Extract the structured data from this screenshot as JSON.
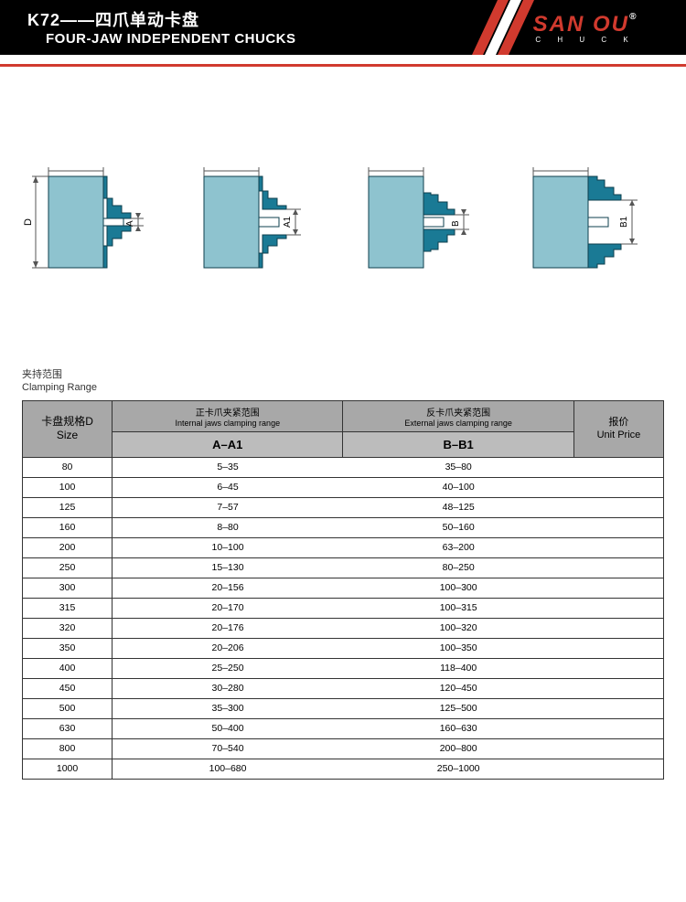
{
  "header": {
    "title_cn": "K72——四爪单动卡盘",
    "title_en": "FOUR-JAW INDEPENDENT CHUCKS",
    "brand": "SAN OU",
    "brand_sub": "C H U C K",
    "brand_color": "#d13a2e",
    "slash_colors": [
      "#d13a2e",
      "#ffffff",
      "#d13a2e"
    ]
  },
  "diagrams": {
    "body_fill": "#8ec3cf",
    "jaw_fill": "#1a7a95",
    "stroke": "#0d3f4d",
    "dim_stroke": "#555555",
    "labels": {
      "d": "D",
      "a": "A",
      "a1": "A1",
      "b": "B",
      "b1": "B1"
    }
  },
  "section": {
    "cn": "夹持范围",
    "en": "Clamping Range"
  },
  "table": {
    "header_bg1": "#a8a8a8",
    "header_bg2": "#bcbcbc",
    "size_cn": "卡盘规格D",
    "size_en": "Size",
    "internal_cn": "正卡爪夹紧范围",
    "internal_en": "Internal jaws clamping range",
    "external_cn": "反卡爪夹紧范围",
    "external_en": "External jaws clamping range",
    "col_a": "A–A1",
    "col_b": "B–B1",
    "price_cn": "报价",
    "price_en": "Unit Price",
    "rows": [
      {
        "size": "80",
        "a": "5–35",
        "b": "35–80",
        "p": ""
      },
      {
        "size": "100",
        "a": "6–45",
        "b": "40–100",
        "p": ""
      },
      {
        "size": "125",
        "a": "7–57",
        "b": "48–125",
        "p": ""
      },
      {
        "size": "160",
        "a": "8–80",
        "b": "50–160",
        "p": ""
      },
      {
        "size": "200",
        "a": "10–100",
        "b": "63–200",
        "p": ""
      },
      {
        "size": "250",
        "a": "15–130",
        "b": "80–250",
        "p": ""
      },
      {
        "size": "300",
        "a": "20–156",
        "b": "100–300",
        "p": ""
      },
      {
        "size": "315",
        "a": "20–170",
        "b": "100–315",
        "p": ""
      },
      {
        "size": "320",
        "a": "20–176",
        "b": "100–320",
        "p": ""
      },
      {
        "size": "350",
        "a": "20–206",
        "b": "100–350",
        "p": ""
      },
      {
        "size": "400",
        "a": "25–250",
        "b": "118–400",
        "p": ""
      },
      {
        "size": "450",
        "a": "30–280",
        "b": "120–450",
        "p": ""
      },
      {
        "size": "500",
        "a": "35–300",
        "b": "125–500",
        "p": ""
      },
      {
        "size": "630",
        "a": "50–400",
        "b": "160–630",
        "p": ""
      },
      {
        "size": "800",
        "a": "70–540",
        "b": "200–800",
        "p": ""
      },
      {
        "size": "1000",
        "a": "100–680",
        "b": "250–1000",
        "p": ""
      }
    ]
  }
}
